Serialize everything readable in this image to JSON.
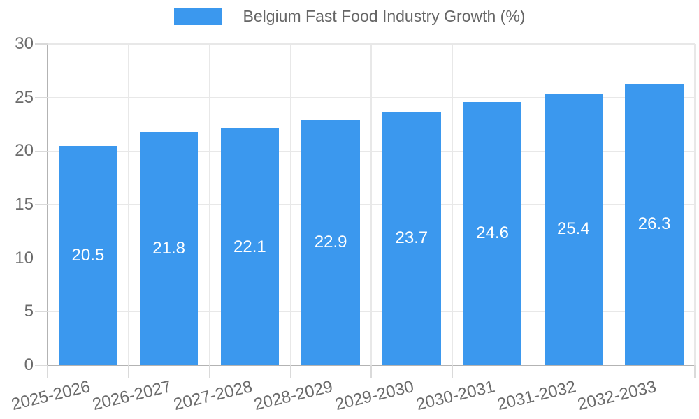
{
  "chart_data": {
    "type": "bar",
    "title": "Belgium Fast Food Industry Growth (%)",
    "legend_label": "Belgium Fast Food Industry Growth (%)",
    "legend_position": "top",
    "categories": [
      "2025-2026",
      "2026-2027",
      "2027-2028",
      "2028-2029",
      "2029-2030",
      "2030-2031",
      "2031-2032",
      "2032-2033"
    ],
    "values": [
      20.5,
      21.8,
      22.1,
      22.9,
      23.7,
      24.6,
      25.4,
      26.3
    ],
    "value_label_decimals": 1,
    "xlabel": "",
    "ylabel": "",
    "ylim": [
      0,
      30
    ],
    "y_ticks": [
      0,
      5,
      10,
      15,
      20,
      25,
      30
    ],
    "grid": true,
    "x_tick_rotation_deg": -13.5,
    "colors": {
      "bar": "#3b98ee",
      "grid": "#e8e8e8",
      "axis_border": "#b3b3b3",
      "tick_mark": "#dadada",
      "tick_label": "#6b6b6b",
      "legend_text": "#666666",
      "value_label": "#ffffff",
      "background": "#ffffff"
    }
  }
}
